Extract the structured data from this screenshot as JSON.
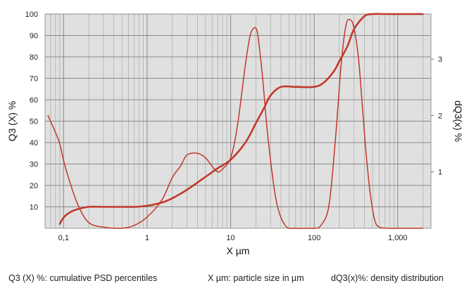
{
  "chart_data": {
    "type": "line",
    "xscale": "log",
    "xlim": [
      0.06,
      2500
    ],
    "ylim_left": [
      0,
      100
    ],
    "ylim_right": [
      0,
      3.8
    ],
    "xlabel": "X µm",
    "ylabel_left": "Q3 (X) %",
    "ylabel_right": "dQ3(x) %",
    "grid": true,
    "background": "#e0e0e0",
    "x_ticks": [
      {
        "value": 0.1,
        "label": "0,1"
      },
      {
        "value": 1,
        "label": "1"
      },
      {
        "value": 10,
        "label": "10"
      },
      {
        "value": 100,
        "label": "100"
      },
      {
        "value": 1000,
        "label": "1,000"
      }
    ],
    "y_left_ticks": [
      {
        "value": 10,
        "label": "10"
      },
      {
        "value": 20,
        "label": "20"
      },
      {
        "value": 30,
        "label": "30"
      },
      {
        "value": 40,
        "label": "40"
      },
      {
        "value": 50,
        "label": "50"
      },
      {
        "value": 60,
        "label": "60"
      },
      {
        "value": 70,
        "label": "70"
      },
      {
        "value": 80,
        "label": "80"
      },
      {
        "value": 90,
        "label": "90"
      },
      {
        "value": 100,
        "label": "100"
      }
    ],
    "y_right_ticks": [
      {
        "value": 1,
        "label": "1"
      },
      {
        "value": 2,
        "label": "2"
      },
      {
        "value": 3,
        "label": "3"
      }
    ],
    "series": [
      {
        "axis": "left",
        "color": "#c0392b",
        "x": [
          0.09,
          0.1,
          0.12,
          0.15,
          0.2,
          0.3,
          0.5,
          0.7,
          1,
          1.5,
          2,
          3,
          5,
          7,
          10,
          15,
          20,
          25,
          30,
          40,
          60,
          100,
          130,
          170,
          200,
          250,
          300,
          400,
          500,
          700,
          1000,
          1500,
          2000
        ],
        "y": [
          2,
          5,
          7.5,
          9,
          10,
          10,
          10,
          10,
          10.5,
          12,
          14,
          18,
          24,
          28,
          32,
          40,
          49,
          56,
          62,
          66,
          66,
          66,
          68,
          73,
          78,
          85,
          93,
          99,
          100,
          100,
          100,
          100,
          100
        ]
      },
      {
        "axis": "right",
        "color": "#c0392b",
        "x": [
          0.065,
          0.08,
          0.09,
          0.1,
          0.12,
          0.15,
          0.2,
          0.3,
          0.5,
          0.7,
          1,
          1.5,
          2,
          2.5,
          3,
          4,
          5,
          6,
          7,
          8,
          10,
          12,
          15,
          17,
          19,
          21,
          24,
          28,
          35,
          45,
          60,
          80,
          100,
          120,
          150,
          180,
          210,
          240,
          270,
          300,
          340,
          380,
          420,
          470,
          530,
          600,
          800,
          1000,
          2000
        ],
        "y": [
          2.0,
          1.7,
          1.5,
          1.2,
          0.8,
          0.4,
          0.1,
          0.02,
          0.0,
          0.05,
          0.2,
          0.5,
          0.9,
          1.1,
          1.3,
          1.33,
          1.25,
          1.1,
          1.0,
          1.05,
          1.25,
          1.8,
          2.9,
          3.4,
          3.55,
          3.45,
          2.7,
          1.6,
          0.5,
          0.05,
          0.0,
          0.0,
          0.0,
          0.05,
          0.4,
          1.6,
          2.9,
          3.6,
          3.7,
          3.55,
          3.0,
          2.1,
          1.3,
          0.6,
          0.15,
          0.02,
          0.0,
          0.0,
          0.0
        ]
      }
    ],
    "footnotes": [
      "Q3 (X) %: cumulative PSD percentiles",
      "X µm: particle size in µm",
      "dQ3(x)%: density distribution"
    ]
  }
}
